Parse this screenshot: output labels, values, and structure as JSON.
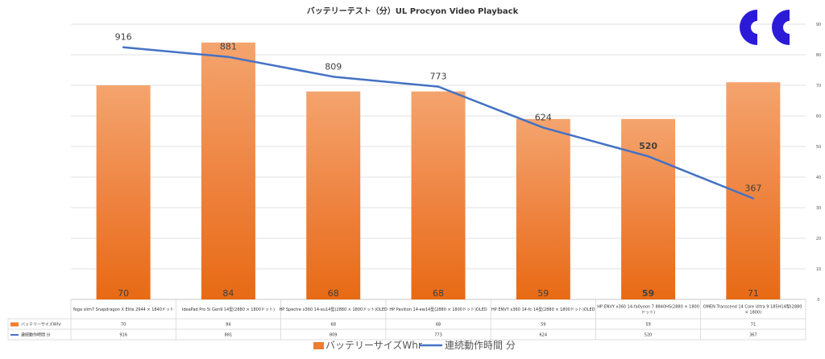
{
  "chart_data": {
    "type": "bar+line",
    "title": "バッテリーテスト（分）UL Procyon Video Playback",
    "categories": [
      "Yoga slim7 Snapdragon X Elite 2944 × 1840ドット",
      "IdeaPad Pro 5i Gen9 14型(2880 × 1800ドット)",
      "HP Spectre x360 14-eu14型(2880 × 1800ドット)OLED",
      "HP Pavilion 14-ew14型(2880 × 1800ドット)OLED",
      "HP ENVY x360 14-fc 14型(2880 × 1800ドット)OLED",
      "HP ENVY x360 14-fa0yoon 7 8840HS(2880 × 1800ドット)",
      "OMEN Transcend 14 Core Ultra 9 185H14型(2880 × 1800)"
    ],
    "series": [
      {
        "name": "バッテリーサイズWhr",
        "kind": "bar",
        "color": "#ED7D31",
        "values": [
          70,
          84,
          68,
          68,
          59,
          59,
          71
        ]
      },
      {
        "name": "連続動作時間 分",
        "kind": "line",
        "color": "#4472C4",
        "values": [
          916,
          881,
          809,
          773,
          624,
          520,
          367
        ]
      }
    ],
    "y_right": {
      "min": 0,
      "max": 90,
      "ticks": [
        0,
        10,
        20,
        30,
        40,
        50,
        60,
        70,
        80,
        90
      ]
    },
    "y_left_max": 1000,
    "grid": true,
    "legend": "bottom",
    "highlight": {
      "color": "#E00000",
      "index": 0
    },
    "bold_index": 5
  },
  "logo": {
    "name": "cc-logo",
    "color": "#2B1BD9"
  }
}
